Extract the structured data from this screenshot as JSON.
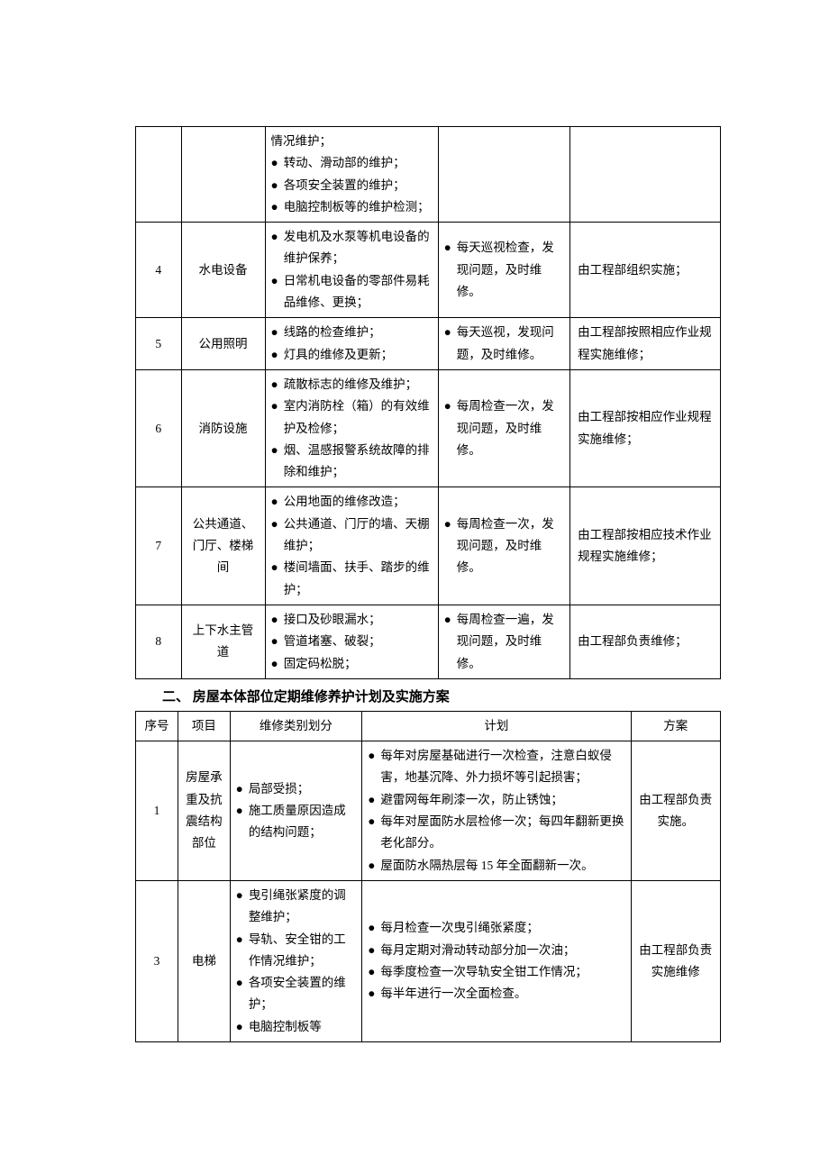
{
  "table1": {
    "cols": {
      "c1_w": 50,
      "c2_w": 90,
      "c3_w": 190,
      "c4_w": 140,
      "c5_w": 160
    },
    "rows": [
      {
        "num": "",
        "name": "",
        "col3_bullets": [
          "转动、滑动部的维护；",
          "各项安全装置的维护；",
          "电脑控制板等的维护检测；"
        ],
        "col3_prefix": "情况维护；",
        "col4_bullets": [],
        "col4_text": "",
        "col5": ""
      },
      {
        "num": "4",
        "name": "水电设备",
        "col3_bullets": [
          "发电机及水泵等机电设备的维护保养；",
          "日常机电设备的零部件易耗品维修、更换；"
        ],
        "col4_bullets": [
          "每天巡视检查，发现问题，及时维修。"
        ],
        "col5": "由工程部组织实施；"
      },
      {
        "num": "5",
        "name": "公用照明",
        "col3_bullets": [
          "线路的检查维护；",
          "灯具的维修及更新；"
        ],
        "col4_bullets": [
          "每天巡视，发现问题，及时维修。"
        ],
        "col5": "由工程部按照相应作业规程实施维修；"
      },
      {
        "num": "6",
        "name": "消防设施",
        "col3_bullets": [
          "疏散标志的维修及维护；",
          "室内消防栓（箱）的有效维护及检修；",
          "烟、温感报警系统故障的排除和维护；"
        ],
        "col4_bullets": [
          "每周检查一次，发现问题，及时维修。"
        ],
        "col5": "由工程部按相应作业规程实施维修；"
      },
      {
        "num": "7",
        "name": "公共通道、门厅、楼梯间",
        "col3_bullets": [
          "公用地面的维修改造；",
          "公共通道、门厅的墙、天棚维护；",
          "楼间墙面、扶手、踏步的维护；"
        ],
        "col4_bullets": [
          "每周检查一次，发现问题，及时维修。"
        ],
        "col5": "由工程部按相应技术作业规程实施维修；"
      },
      {
        "num": "8",
        "name": "上下水主管道",
        "col3_bullets": [
          "接口及砂眼漏水；",
          "管道堵塞、破裂；",
          "固定码松脱；"
        ],
        "col4_bullets": [
          "每周检查一遍，发现问题，及时维修。"
        ],
        "col5": "由工程部负责维修；"
      }
    ]
  },
  "heading2": "二、 房屋本体部位定期维修养护计划及实施方案",
  "table2": {
    "cols": {
      "c1_w": 45,
      "c2_w": 55,
      "c3_w": 140,
      "c4_w": 280,
      "c5_w": 90
    },
    "head": {
      "c1": "序号",
      "c2": "项目",
      "c3": "维修类别划分",
      "c4": "计划",
      "c5": "方案"
    },
    "rows": [
      {
        "num": "1",
        "name": "房屋承重及抗震结构部位",
        "col3_bullets": [
          "局部受损；",
          "施工质量原因造成的结构问题；"
        ],
        "col4_bullets": [
          "每年对房屋基础进行一次检查，注意白蚁侵害，地基沉降、外力损坏等引起损害；",
          "避雷网每年刷漆一次，防止锈蚀；",
          "每年对屋面防水层检修一次；每四年翻新更换老化部分。",
          "屋面防水隔热层每 15 年全面翻新一次。"
        ],
        "col5": "由工程部负责实施。"
      },
      {
        "num": "3",
        "name": "电梯",
        "col3_bullets": [
          "曳引绳张紧度的调整维护；",
          "导轨、安全钳的工作情况维护；",
          "各项安全装置的维护；",
          "电脑控制板等"
        ],
        "col4_bullets": [
          "每月检查一次曳引绳张紧度；",
          "每月定期对滑动转动部分加一次油；",
          "每季度检查一次导轨安全钳工作情况；",
          "每半年进行一次全面检查。"
        ],
        "col5": "由工程部负责实施维修"
      }
    ]
  }
}
